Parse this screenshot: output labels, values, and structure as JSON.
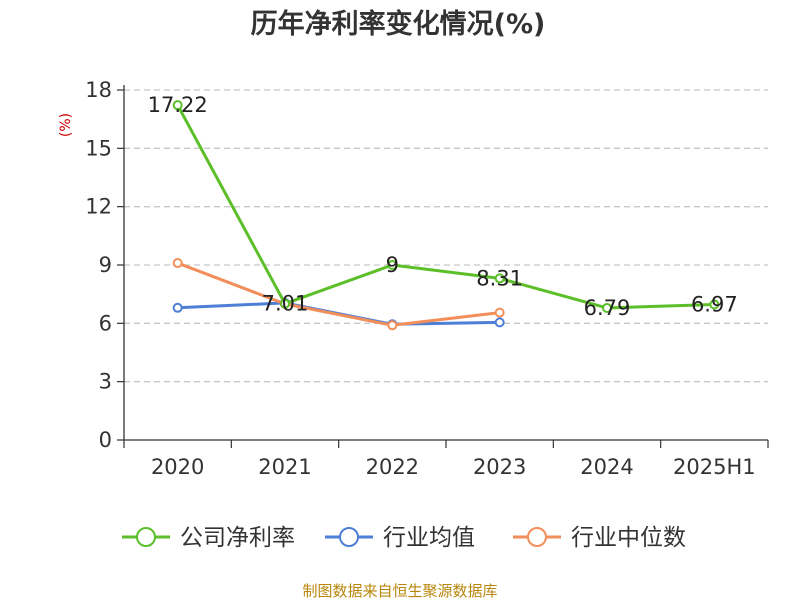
{
  "chart_data": {
    "type": "line",
    "title": "历年净利率变化情况(%)",
    "ylabel": "(%)",
    "categories": [
      "2020",
      "2021",
      "2022",
      "2023",
      "2024",
      "2025H1"
    ],
    "ylim": [
      0,
      18
    ],
    "yticks": [
      0,
      3,
      6,
      9,
      12,
      15,
      18
    ],
    "grid": true,
    "legend_position": "bottom",
    "series": [
      {
        "name": "公司净利率",
        "color": "#5cbf2a",
        "values": [
          17.22,
          7.01,
          9,
          8.31,
          6.79,
          6.97
        ],
        "labels": [
          "17.22",
          "7.01",
          "9",
          "8.31",
          "6.79",
          "6.97"
        ]
      },
      {
        "name": "行业均值",
        "color": "#4e7fd6",
        "values": [
          6.8,
          7.05,
          5.95,
          6.05,
          null,
          null
        ]
      },
      {
        "name": "行业中位数",
        "color": "#f28e5a",
        "values": [
          9.1,
          7.0,
          5.9,
          6.55,
          null,
          null
        ]
      }
    ]
  },
  "source": "制图数据来自恒生聚源数据库"
}
